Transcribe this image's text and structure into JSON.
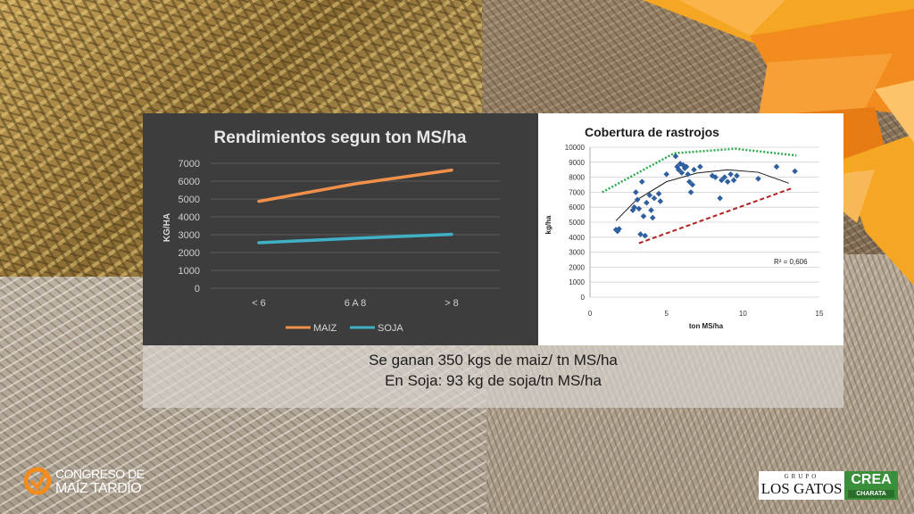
{
  "colors": {
    "maiz": "#f0904a",
    "soja": "#3fb0c5",
    "scatter": "#2e5f9e",
    "upper_line": "#2ca84a",
    "lower_line": "#b22222",
    "trend": "#1a1a1a",
    "accent_orange": "#f28c1e"
  },
  "caption": {
    "line1": "Se ganan 350 kgs de maiz/ tn MS/ha",
    "line2": "En Soja: 93 kg de soja/tn MS/ha"
  },
  "logos": {
    "congreso_line1": "CONGRESO DE",
    "congreso_line2": "MAÍZ TARDÍO",
    "grupo": "GRUPO",
    "los_gatos": "LOS GATOS",
    "crea": "CREA",
    "charata": "CHARATA"
  },
  "chart_data": [
    {
      "type": "line",
      "title": "Rendimientos segun ton MS/ha",
      "ylabel": "KG/HA",
      "xlabel": "",
      "categories": [
        "< 6",
        "6 A 8",
        "> 8"
      ],
      "ylim": [
        0,
        7000
      ],
      "yticks": [
        0,
        1000,
        2000,
        3000,
        4000,
        5000,
        6000,
        7000
      ],
      "grid": true,
      "legend": "bottom",
      "series": [
        {
          "name": "MAIZ",
          "values": [
            4870,
            5850,
            6620
          ]
        },
        {
          "name": "SOJA",
          "values": [
            2550,
            2800,
            3020
          ]
        }
      ]
    },
    {
      "type": "scatter",
      "title": "Cobertura de rastrojos",
      "xlabel": "ton MS/ha",
      "ylabel": "kg/ha",
      "xlim": [
        0,
        15
      ],
      "ylim": [
        0,
        10000
      ],
      "xticks": [
        0,
        5,
        10,
        15
      ],
      "yticks": [
        0,
        1000,
        2000,
        3000,
        4000,
        5000,
        6000,
        7000,
        8000,
        9000,
        10000
      ],
      "grid": true,
      "annotation": "R² = 0,606",
      "points": [
        [
          1.7,
          4500
        ],
        [
          1.8,
          4400
        ],
        [
          1.9,
          4550
        ],
        [
          2.8,
          5800
        ],
        [
          2.9,
          6000
        ],
        [
          3.0,
          7000
        ],
        [
          3.1,
          6500
        ],
        [
          3.2,
          5900
        ],
        [
          3.3,
          4200
        ],
        [
          3.4,
          7700
        ],
        [
          3.5,
          5400
        ],
        [
          3.6,
          4100
        ],
        [
          3.7,
          6300
        ],
        [
          3.9,
          6800
        ],
        [
          4.0,
          5800
        ],
        [
          4.1,
          5300
        ],
        [
          4.2,
          6600
        ],
        [
          4.5,
          6900
        ],
        [
          4.6,
          6400
        ],
        [
          5.0,
          8200
        ],
        [
          5.6,
          9400
        ],
        [
          5.7,
          8700
        ],
        [
          5.8,
          8500
        ],
        [
          5.9,
          8900
        ],
        [
          6.0,
          8300
        ],
        [
          6.1,
          8800
        ],
        [
          6.2,
          8600
        ],
        [
          6.3,
          8700
        ],
        [
          6.4,
          8200
        ],
        [
          6.5,
          7700
        ],
        [
          6.6,
          7000
        ],
        [
          6.7,
          7500
        ],
        [
          6.8,
          8500
        ],
        [
          7.2,
          8700
        ],
        [
          8.0,
          8100
        ],
        [
          8.2,
          8000
        ],
        [
          8.5,
          6600
        ],
        [
          8.6,
          7800
        ],
        [
          8.8,
          8000
        ],
        [
          9.0,
          7700
        ],
        [
          9.2,
          8200
        ],
        [
          9.4,
          7800
        ],
        [
          9.6,
          8100
        ],
        [
          11.0,
          7900
        ],
        [
          12.2,
          8700
        ],
        [
          13.4,
          8400
        ]
      ],
      "trend_curve": [
        [
          1.7,
          5100
        ],
        [
          3,
          6450
        ],
        [
          5,
          7700
        ],
        [
          7,
          8280
        ],
        [
          9,
          8500
        ],
        [
          11,
          8330
        ],
        [
          13,
          7600
        ]
      ],
      "upper_bound": [
        [
          0.8,
          7000
        ],
        [
          5.5,
          9600
        ],
        [
          9.5,
          9900
        ],
        [
          13.5,
          9450
        ]
      ],
      "lower_bound": [
        [
          3.2,
          3600
        ],
        [
          13.3,
          7300
        ]
      ]
    }
  ]
}
